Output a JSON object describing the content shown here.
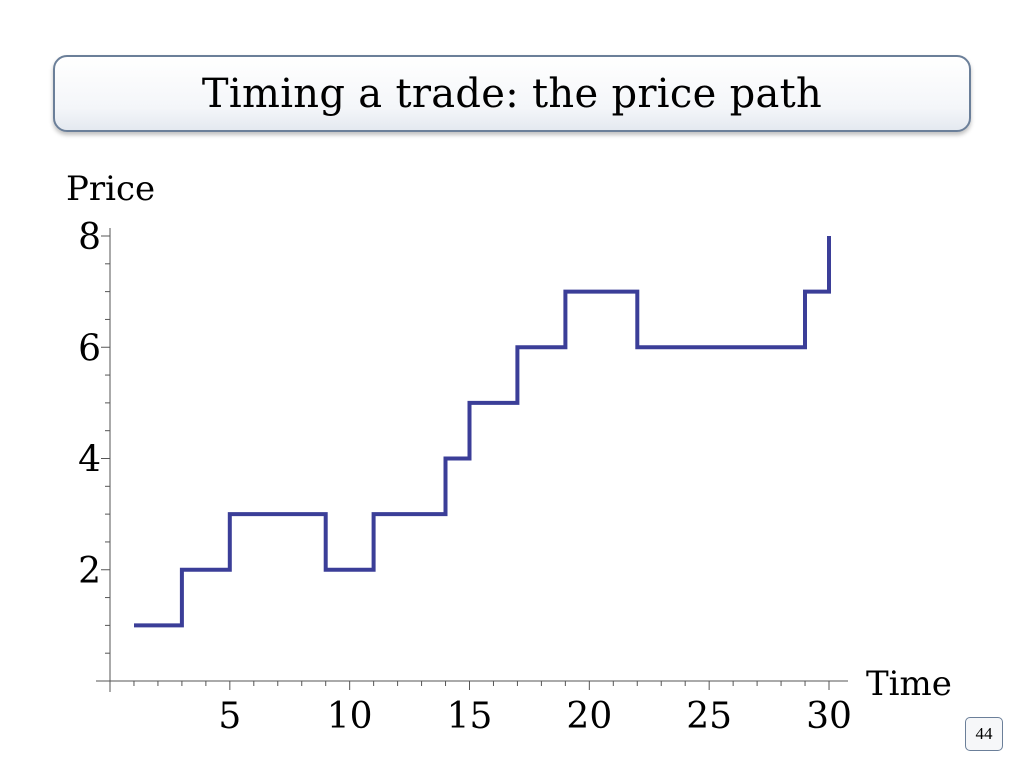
{
  "slide": {
    "title": "Timing a trade: the price path",
    "page_number": "44"
  },
  "colors": {
    "line": "#3b3e98",
    "axis": "#555555",
    "title_border": "#6b7f99"
  },
  "chart_data": {
    "type": "line",
    "step": true,
    "title": "",
    "xlabel": "Time",
    "ylabel": "Price",
    "xlim": [
      0,
      30
    ],
    "ylim": [
      0,
      8
    ],
    "xticks": [
      5,
      10,
      15,
      20,
      25,
      30
    ],
    "yticks": [
      2,
      4,
      6,
      8
    ],
    "grid": false,
    "series": [
      {
        "x": [
          1,
          3,
          3,
          5,
          5,
          9,
          9,
          11,
          11,
          14,
          14,
          15,
          15,
          17,
          17,
          19,
          19,
          22,
          22,
          29,
          29,
          30,
          30
        ],
        "y": [
          1,
          1,
          2,
          2,
          3,
          3,
          2,
          2,
          3,
          3,
          4,
          4,
          5,
          5,
          6,
          6,
          7,
          7,
          6,
          6,
          7,
          7,
          8
        ]
      }
    ]
  }
}
